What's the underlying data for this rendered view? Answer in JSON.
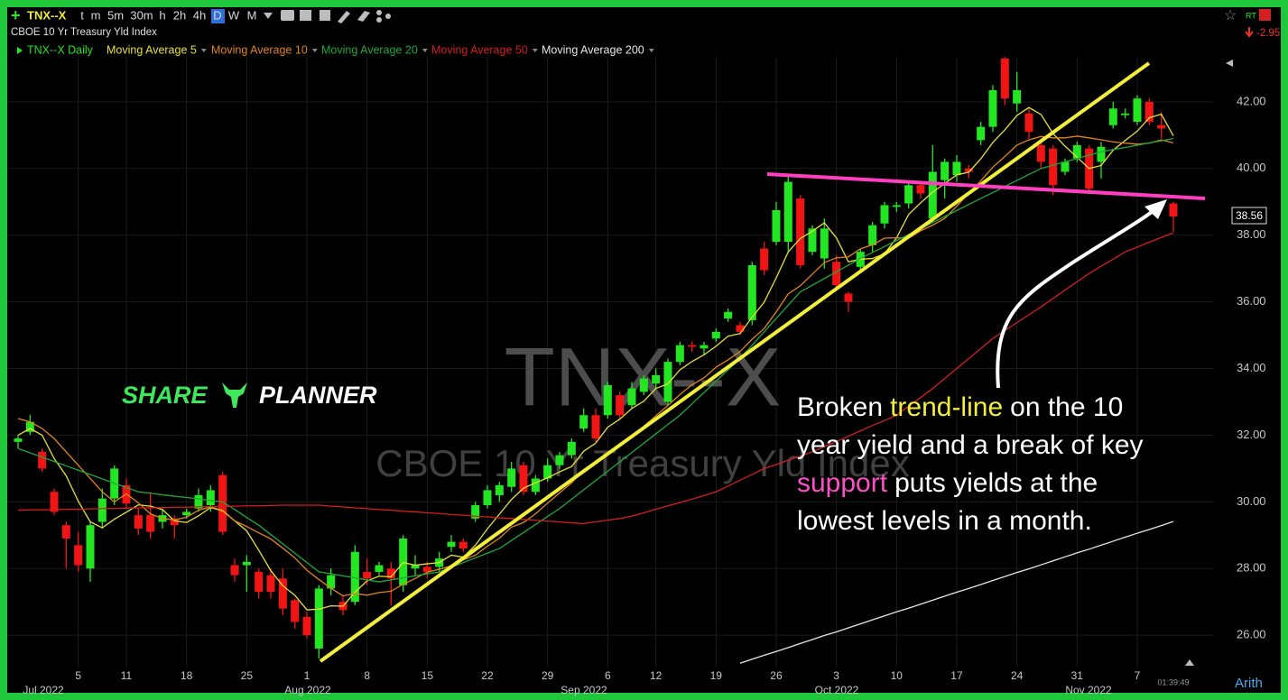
{
  "toolbar": {
    "symbol": "TNX--X",
    "intervals": [
      "t",
      "m",
      "5m",
      "30m",
      "h",
      "2h",
      "4h",
      "D",
      "W",
      "M"
    ],
    "rt": "RT",
    "change": "-2.95"
  },
  "chart_data": {
    "type": "candlestick",
    "title": "CBOE 10 Yr Treasury Yld Index",
    "watermark": [
      "TNX--X",
      "CBOE 10 Yr Treasury Yld Index"
    ],
    "categories": [
      null,
      null,
      null,
      null,
      null,
      "5",
      null,
      null,
      null,
      "11",
      null,
      null,
      null,
      null,
      "18",
      null,
      null,
      null,
      null,
      "25",
      null,
      null,
      null,
      null,
      "1",
      null,
      null,
      null,
      null,
      "8",
      null,
      null,
      null,
      null,
      "15",
      null,
      null,
      null,
      null,
      "22",
      null,
      null,
      null,
      null,
      "29",
      null,
      null,
      null,
      null,
      "6",
      null,
      null,
      null,
      "12",
      null,
      null,
      null,
      null,
      "19",
      null,
      null,
      null,
      null,
      "26",
      null,
      null,
      null,
      null,
      "3",
      null,
      null,
      null,
      null,
      "10",
      null,
      null,
      null,
      null,
      "17",
      null,
      null,
      null,
      null,
      "24",
      null,
      null,
      null,
      null,
      "31",
      null,
      null,
      null,
      null,
      "7",
      null,
      null,
      null
    ],
    "months": [
      "Jul 2022",
      "Aug 2022",
      "Sep 2022",
      "Oct 2022",
      "Nov 2022"
    ],
    "candles": {
      "name": "TNX--X Daily",
      "up_color": "#22e622",
      "down_color": "#f01414",
      "open": [
        31.8,
        32.1,
        31.5,
        30.3,
        29.3,
        28.7,
        28.0,
        29.4,
        30.1,
        30.5,
        29.6,
        29.6,
        29.4,
        29.5,
        29.6,
        29.8,
        29.9,
        30.8,
        28.1,
        28.1,
        27.9,
        27.8,
        27.7,
        27.05,
        26.55,
        25.6,
        27.4,
        27.0,
        27.0,
        27.9,
        27.9,
        28.0,
        27.5,
        28.0,
        28.05,
        28.05,
        28.65,
        28.8,
        29.5,
        29.9,
        30.2,
        30.45,
        31.1,
        30.3,
        30.7,
        31.1,
        31.4,
        32.2,
        32.6,
        32.6,
        33.2,
        32.9,
        33.3,
        33.55,
        33.0,
        34.2,
        34.7,
        34.6,
        34.9,
        35.5,
        35.3,
        35.45,
        37.6,
        37.8,
        37.8,
        39.1,
        37.5,
        37.3,
        37.2,
        36.25,
        37.05,
        37.7,
        38.35,
        38.85,
        38.95,
        39.5,
        38.5,
        39.65,
        39.8,
        40.0,
        40.85,
        41.25,
        43.3,
        41.95,
        41.65,
        40.7,
        40.6,
        39.9,
        40.3,
        40.6,
        40.2,
        41.3,
        41.6,
        41.4,
        42.0,
        41.3,
        38.95
      ],
      "high": [
        32.0,
        32.6,
        31.6,
        30.4,
        29.4,
        29.1,
        29.4,
        30.4,
        31.1,
        30.7,
        29.8,
        30.3,
        29.8,
        29.6,
        29.8,
        30.4,
        30.5,
        30.9,
        28.3,
        28.4,
        28.0,
        28.0,
        28.0,
        27.1,
        26.7,
        27.5,
        28.0,
        27.2,
        28.7,
        28.3,
        28.2,
        28.2,
        29.0,
        28.4,
        28.2,
        28.5,
        29.0,
        28.9,
        30.0,
        30.5,
        30.6,
        31.2,
        31.2,
        30.8,
        31.3,
        31.5,
        31.9,
        32.8,
        32.8,
        33.6,
        33.3,
        33.6,
        33.8,
        34.0,
        34.3,
        34.8,
        34.8,
        34.8,
        35.2,
        35.8,
        35.4,
        37.2,
        37.8,
        39.0,
        39.8,
        39.2,
        38.3,
        38.5,
        37.4,
        36.3,
        37.6,
        38.4,
        39.0,
        39.0,
        39.6,
        39.6,
        40.7,
        40.3,
        40.4,
        40.1,
        41.4,
        42.5,
        43.35,
        42.9,
        41.8,
        40.9,
        40.7,
        40.3,
        40.8,
        40.7,
        40.8,
        42.0,
        41.8,
        42.2,
        42.1,
        41.7,
        39.0
      ],
      "low": [
        31.6,
        32.0,
        30.9,
        29.6,
        28.0,
        27.9,
        27.6,
        29.2,
        29.9,
        29.8,
        29.0,
        28.9,
        29.2,
        28.9,
        29.5,
        29.7,
        29.7,
        29.0,
        27.6,
        27.3,
        27.1,
        27.1,
        26.6,
        26.2,
        25.9,
        25.3,
        27.2,
        26.6,
        26.9,
        27.5,
        27.8,
        26.9,
        27.3,
        27.8,
        27.7,
        27.9,
        28.5,
        28.5,
        29.4,
        29.8,
        30.0,
        30.3,
        30.2,
        30.2,
        30.6,
        31.0,
        31.3,
        32.1,
        31.8,
        32.5,
        32.5,
        32.8,
        33.2,
        33.4,
        32.9,
        34.1,
        34.5,
        34.4,
        34.8,
        35.4,
        35.0,
        35.3,
        36.8,
        37.7,
        37.5,
        37.0,
        37.4,
        37.0,
        36.4,
        35.7,
        36.9,
        37.5,
        38.2,
        38.7,
        38.8,
        39.1,
        38.4,
        39.1,
        39.6,
        39.7,
        40.7,
        41.1,
        41.9,
        41.7,
        40.9,
        40.0,
        39.2,
        39.8,
        40.2,
        39.3,
        39.7,
        41.2,
        41.5,
        41.3,
        41.3,
        40.9,
        38.1
      ],
      "close": [
        31.9,
        32.4,
        31.0,
        29.7,
        28.9,
        28.1,
        29.3,
        30.1,
        31.0,
        29.95,
        29.2,
        29.1,
        29.6,
        29.3,
        29.7,
        30.2,
        30.35,
        29.1,
        27.8,
        28.2,
        27.3,
        27.3,
        26.8,
        26.4,
        26.0,
        27.4,
        27.8,
        26.75,
        28.5,
        27.7,
        28.1,
        27.7,
        28.9,
        28.1,
        27.9,
        28.3,
        28.8,
        28.6,
        29.9,
        30.35,
        30.5,
        31.0,
        30.3,
        30.7,
        31.1,
        31.4,
        31.8,
        32.6,
        31.9,
        33.5,
        32.6,
        33.4,
        33.7,
        33.8,
        34.2,
        34.7,
        34.65,
        34.7,
        35.1,
        35.7,
        35.1,
        37.1,
        36.95,
        38.75,
        39.6,
        37.1,
        38.2,
        38.2,
        36.5,
        36.0,
        37.5,
        38.3,
        38.9,
        38.9,
        39.5,
        39.25,
        39.9,
        40.2,
        40.2,
        39.9,
        41.25,
        42.35,
        42.1,
        42.35,
        41.1,
        40.2,
        39.5,
        40.2,
        40.7,
        39.4,
        40.65,
        41.8,
        41.65,
        42.1,
        41.4,
        41.2,
        38.56
      ]
    },
    "series": [
      {
        "name": "Moving Average 5",
        "color": "#e6e03a",
        "values": [
          32.0,
          32.2,
          32.0,
          31.3,
          30.78,
          30.02,
          29.4,
          29.22,
          29.48,
          29.69,
          29.91,
          29.87,
          29.77,
          29.43,
          29.38,
          29.58,
          29.83,
          29.73,
          29.43,
          29.13,
          28.55,
          27.94,
          27.48,
          27.2,
          26.76,
          26.78,
          26.88,
          26.87,
          27.29,
          27.63,
          27.77,
          27.75,
          28.18,
          28.1,
          28.14,
          28.18,
          28.4,
          28.34,
          28.7,
          29.19,
          29.63,
          30.07,
          30.41,
          30.57,
          30.72,
          30.9,
          31.06,
          31.52,
          31.76,
          32.24,
          32.48,
          32.8,
          33.02,
          33.4,
          33.54,
          33.96,
          34.21,
          34.41,
          34.67,
          34.97,
          35.05,
          35.54,
          35.99,
          36.72,
          37.5,
          37.9,
          38.12,
          38.37,
          37.92,
          37.2,
          37.28,
          37.3,
          37.44,
          37.92,
          38.62,
          38.97,
          39.29,
          39.55,
          39.81,
          39.89,
          40.29,
          40.78,
          41.16,
          41.59,
          41.83,
          41.62,
          41.05,
          40.67,
          40.34,
          40.0,
          40.09,
          40.55,
          40.84,
          41.12,
          41.52,
          41.63,
          40.98
        ]
      },
      {
        "name": "Moving Average 10",
        "color": "#e0841c",
        "values": [
          32.5,
          32.4,
          32.2,
          31.9,
          31.5,
          31.1,
          30.7,
          30.3,
          30.0,
          30.24,
          29.97,
          29.64,
          29.5,
          29.46,
          29.54,
          29.75,
          29.85,
          29.75,
          29.43,
          29.26,
          29.07,
          28.89,
          28.61,
          28.32,
          27.95,
          27.67,
          27.41,
          27.18,
          27.25,
          27.2,
          27.28,
          27.32,
          27.53,
          27.7,
          27.89,
          27.98,
          28.08,
          28.26,
          28.4,
          28.67,
          28.91,
          29.24,
          29.38,
          29.64,
          29.96,
          30.27,
          30.57,
          30.97,
          31.17,
          31.48,
          31.69,
          31.93,
          32.27,
          32.58,
          32.89,
          33.22,
          33.51,
          33.72,
          34.04,
          34.26,
          34.51,
          34.88,
          35.2,
          35.7,
          36.24,
          36.48,
          36.83,
          37.18,
          37.32,
          37.35,
          37.59,
          37.71,
          37.91,
          37.92,
          37.91,
          38.13,
          38.3,
          38.5,
          38.87,
          39.26,
          39.63,
          40.04,
          40.36,
          40.7,
          40.86,
          40.96,
          40.92,
          40.92,
          40.97,
          40.92,
          40.86,
          40.8,
          40.76,
          40.73,
          40.76,
          40.86,
          40.77
        ]
      },
      {
        "name": "Moving Average 20",
        "color": "#1ea83a",
        "values": [
          31.6,
          31.47,
          31.34,
          31.21,
          31.08,
          30.95,
          30.82,
          30.69,
          30.56,
          30.43,
          30.3,
          30.26,
          30.21,
          30.17,
          30.13,
          30.09,
          30.04,
          30.0,
          29.77,
          29.53,
          29.3,
          29.02,
          28.74,
          28.46,
          28.18,
          27.9,
          27.84,
          27.78,
          27.72,
          27.66,
          27.6,
          27.66,
          27.72,
          27.78,
          27.84,
          27.9,
          28.04,
          28.18,
          28.32,
          28.46,
          28.6,
          28.84,
          29.08,
          29.32,
          29.56,
          29.8,
          30.08,
          30.36,
          30.64,
          30.92,
          31.2,
          31.48,
          31.76,
          32.04,
          32.32,
          32.6,
          32.94,
          33.28,
          33.62,
          33.96,
          34.3,
          34.7,
          35.1,
          35.5,
          35.9,
          36.3,
          36.5,
          36.7,
          36.9,
          37.1,
          37.3,
          37.48,
          37.66,
          37.84,
          38.02,
          38.2,
          38.38,
          38.56,
          38.74,
          38.92,
          39.1,
          39.28,
          39.46,
          39.64,
          39.82,
          40.0,
          40.1,
          40.2,
          40.3,
          40.4,
          40.5,
          40.57,
          40.63,
          40.7,
          40.77,
          40.83,
          40.9
        ]
      },
      {
        "name": "Moving Average 50",
        "color": "#d41e1e",
        "values": [
          29.75,
          29.76,
          29.76,
          29.77,
          29.78,
          29.78,
          29.79,
          29.8,
          29.8,
          29.81,
          29.82,
          29.82,
          29.83,
          29.84,
          29.84,
          29.85,
          29.86,
          29.86,
          29.87,
          29.88,
          29.88,
          29.89,
          29.9,
          29.9,
          29.9,
          29.9,
          29.87,
          29.85,
          29.82,
          29.8,
          29.77,
          29.75,
          29.72,
          29.7,
          29.67,
          29.65,
          29.62,
          29.6,
          29.57,
          29.55,
          29.52,
          29.5,
          29.47,
          29.45,
          29.42,
          29.4,
          29.37,
          29.35,
          29.4,
          29.45,
          29.5,
          29.57,
          29.67,
          29.78,
          29.88,
          29.98,
          30.08,
          30.19,
          30.3,
          30.47,
          30.65,
          30.82,
          31.0,
          31.12,
          31.25,
          31.37,
          31.5,
          31.66,
          31.81,
          31.97,
          32.13,
          32.29,
          32.44,
          32.6,
          32.87,
          33.13,
          33.4,
          33.7,
          34.0,
          34.3,
          34.6,
          34.9,
          35.14,
          35.38,
          35.61,
          35.85,
          36.1,
          36.35,
          36.6,
          36.85,
          37.07,
          37.28,
          37.5,
          37.64,
          37.79,
          37.93,
          38.07
        ]
      },
      {
        "name": "Moving Average 200",
        "color": "#e6e6e6",
        "values": [
          null,
          null,
          null,
          null,
          null,
          null,
          null,
          null,
          null,
          null,
          null,
          null,
          null,
          null,
          null,
          null,
          null,
          null,
          null,
          null,
          null,
          null,
          null,
          null,
          null,
          null,
          null,
          null,
          null,
          null,
          null,
          null,
          null,
          null,
          null,
          null,
          null,
          null,
          null,
          null,
          null,
          null,
          null,
          null,
          null,
          null,
          null,
          null,
          null,
          null,
          null,
          null,
          null,
          null,
          null,
          null,
          null,
          null,
          null,
          null,
          25.16,
          25.28,
          25.4,
          25.51,
          25.63,
          25.75,
          25.87,
          25.99,
          26.1,
          26.22,
          26.34,
          26.46,
          26.58,
          26.7,
          26.81,
          26.93,
          27.05,
          27.17,
          27.29,
          27.4,
          27.52,
          27.64,
          27.76,
          27.88,
          27.99,
          28.11,
          28.23,
          28.35,
          28.47,
          28.58,
          28.7,
          28.82,
          28.94,
          29.06,
          29.17,
          29.29,
          29.41
        ]
      }
    ],
    "ylim": [
      25.03,
      43.35
    ],
    "yticks": [
      {
        "value": 26,
        "label": "26.00"
      },
      {
        "value": 28,
        "label": "28.00"
      },
      {
        "value": 30,
        "label": "30.00"
      },
      {
        "value": 32,
        "label": "32.00"
      },
      {
        "value": 34,
        "label": "34.00"
      },
      {
        "value": 36,
        "label": "36.00"
      },
      {
        "value": 38,
        "label": "38.00"
      },
      {
        "value": 40,
        "label": "40.00"
      },
      {
        "value": 42,
        "label": "42.00"
      }
    ],
    "grid": true,
    "scale": "Arith",
    "clock": "01:39:49",
    "logo": [
      "SHARE",
      "PLANNER"
    ],
    "annotation": [
      [
        {
          "text": "Broken",
          "color": "#ffffff"
        },
        {
          "text": "trend-line",
          "color": "#f2ee3a"
        },
        {
          "text": "on the 10",
          "color": "#ffffff"
        }
      ],
      [
        {
          "text": "year yield and a break of key",
          "color": "#ffffff"
        }
      ],
      [
        {
          "text": "support",
          "color": "#ff4fc8"
        },
        {
          "text": "puts yields at the",
          "color": "#ffffff"
        }
      ],
      [
        {
          "text": "lowest levels in a month.",
          "color": "#ffffff"
        }
      ]
    ]
  }
}
